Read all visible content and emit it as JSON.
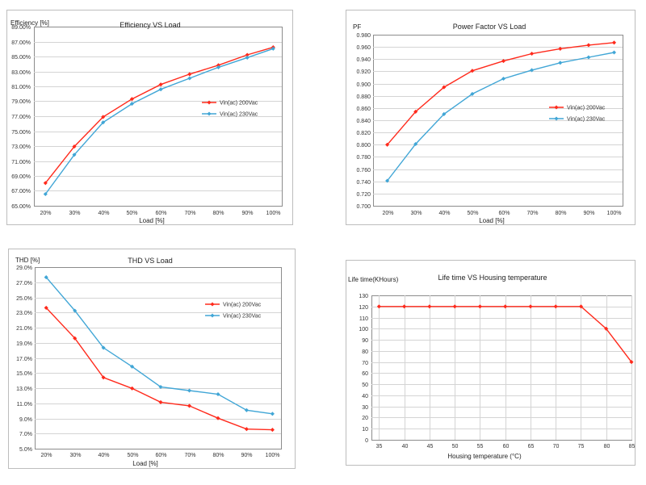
{
  "chart_data": [
    {
      "type": "line",
      "title": "Efficiency VS Load",
      "ylabel": "Efficiency [%]",
      "xlabel": "Load [%]",
      "categories": [
        "20%",
        "30%",
        "40%",
        "50%",
        "60%",
        "70%",
        "80%",
        "90%",
        "100%"
      ],
      "x": [
        21,
        31,
        41,
        51,
        61,
        71,
        81,
        91,
        100
      ],
      "xlim": [
        17,
        103
      ],
      "ylim": [
        65,
        91
      ],
      "yticks": [
        "65.00%",
        "67.00%",
        "69.00%",
        "71.00%",
        "73.00%",
        "75.00%",
        "77.00%",
        "79.00%",
        "81.00%",
        "83.00%",
        "85.00%",
        "87.00%",
        "89.00%"
      ],
      "series": [
        {
          "name": "Vin(ac) 200Vac",
          "color": "#ff2a1c",
          "values": [
            68.3,
            73.6,
            77.9,
            80.5,
            82.6,
            84.1,
            85.4,
            86.9,
            88.0
          ]
        },
        {
          "name": "Vin(ac) 230Vac",
          "color": "#41a6d6",
          "values": [
            66.7,
            72.4,
            77.1,
            79.8,
            81.9,
            83.5,
            85.1,
            86.5,
            87.8
          ]
        }
      ],
      "legend": "center-right",
      "grid": true
    },
    {
      "type": "line",
      "title": "Power Factor VS Load",
      "ylabel": "PF",
      "xlabel": "Load [%]",
      "categories": [
        "20%",
        "30%",
        "40%",
        "50%",
        "60%",
        "70%",
        "80%",
        "90%",
        "100%"
      ],
      "x": [
        20,
        30,
        40,
        50,
        61,
        71,
        81,
        91,
        100
      ],
      "xlim": [
        15,
        103
      ],
      "ylim": [
        0.7,
        0.98
      ],
      "yticks": [
        "0.700",
        "0.720",
        "0.740",
        "0.760",
        "0.780",
        "0.800",
        "0.820",
        "0.840",
        "0.860",
        "0.880",
        "0.900",
        "0.920",
        "0.940",
        "0.960",
        "0.980"
      ],
      "series": [
        {
          "name": "Vin(ac) 200Vac",
          "color": "#ff2a1c",
          "values": [
            0.8,
            0.854,
            0.894,
            0.921,
            0.937,
            0.949,
            0.957,
            0.963,
            0.967
          ]
        },
        {
          "name": "Vin(ac) 230Vac",
          "color": "#41a6d6",
          "values": [
            0.741,
            0.801,
            0.85,
            0.883,
            0.908,
            0.922,
            0.934,
            0.943,
            0.951
          ]
        }
      ],
      "legend": "center-right",
      "grid": true
    },
    {
      "type": "line",
      "title": "THD VS Load",
      "ylabel": "THD [%]",
      "xlabel": "Load [%]",
      "categories": [
        "20%",
        "30%",
        "40%",
        "50%",
        "60%",
        "70%",
        "80%",
        "90%",
        "100%"
      ],
      "x": [
        21,
        31,
        41,
        51,
        61,
        71,
        81,
        91,
        100
      ],
      "xlim": [
        17,
        103
      ],
      "ylim": [
        5,
        30
      ],
      "yticks": [
        "5.0%",
        "7.0%",
        "9.0%",
        "11.0%",
        "13.0%",
        "15.0%",
        "17.0%",
        "19.0%",
        "21.0%",
        "23.0%",
        "25.0%",
        "27.0%",
        "29.0%"
      ],
      "series": [
        {
          "name": "Vin(ac) 200Vac",
          "color": "#ff2a1c",
          "values": [
            24.4,
            20.2,
            14.8,
            13.3,
            11.4,
            10.9,
            9.2,
            7.7,
            7.6
          ]
        },
        {
          "name": "Vin(ac) 230Vac",
          "color": "#41a6d6",
          "values": [
            28.6,
            24.0,
            18.9,
            16.3,
            13.5,
            13.0,
            12.5,
            10.3,
            9.8
          ]
        }
      ],
      "legend": "top-right",
      "grid": true
    },
    {
      "type": "line",
      "title": "Life time VS Housing temperature",
      "ylabel": "Life time(KHours)",
      "xlabel": "Housing temperature (°C)",
      "categories": [
        "35",
        "40",
        "45",
        "50",
        "55",
        "60",
        "65",
        "70",
        "75",
        "80",
        "85"
      ],
      "x": [
        35,
        40,
        45,
        50,
        55,
        60,
        65,
        70,
        75,
        80,
        85
      ],
      "xlim": [
        33.5,
        85
      ],
      "ylim": [
        0,
        130
      ],
      "yticks": [
        "0",
        "10",
        "20",
        "30",
        "40",
        "50",
        "60",
        "70",
        "80",
        "90",
        "100",
        "110",
        "120",
        "130"
      ],
      "series": [
        {
          "color": "#ff2a1c",
          "values": [
            120,
            120,
            120,
            120,
            120,
            120,
            120,
            120,
            120,
            100,
            70
          ]
        }
      ],
      "grid": true
    }
  ]
}
